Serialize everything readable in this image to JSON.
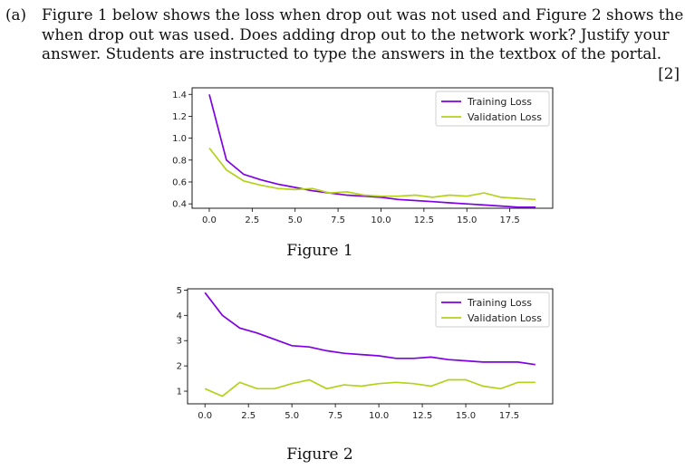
{
  "question": {
    "label": "(a)",
    "lines": [
      "Figure 1 below shows the loss when drop out was not used and Figure 2 shows the loss",
      "when drop out was used.  Does adding drop out to the network work?  Justify your",
      "answer. Students are instructed to type the answers in the textbox of the portal."
    ],
    "marks": "[2]"
  },
  "captions": [
    "Figure 1",
    "Figure 2"
  ],
  "colors": {
    "training": "#7f00e6",
    "validation": "#b5d11a"
  },
  "chart_data": [
    {
      "type": "line",
      "title": "",
      "xlabel": "",
      "ylabel": "",
      "xlim": [
        -1,
        20
      ],
      "ylim": [
        0.36,
        1.46
      ],
      "xticks": [
        0.0,
        2.5,
        5.0,
        7.5,
        10.0,
        12.5,
        15.0,
        17.5
      ],
      "xtick_labels": [
        "0.0",
        "2.5",
        "5.0",
        "7.5",
        "10.0",
        "12.5",
        "15.0",
        "17.5"
      ],
      "yticks": [
        0.4,
        0.6,
        0.8,
        1.0,
        1.2,
        1.4
      ],
      "ytick_labels": [
        "0.4",
        "0.6",
        "0.8",
        "1.0",
        "1.2",
        "1.4"
      ],
      "legend_position": "top-right",
      "x": [
        0,
        1,
        2,
        3,
        4,
        5,
        6,
        7,
        8,
        9,
        10,
        11,
        12,
        13,
        14,
        15,
        16,
        17,
        18,
        19
      ],
      "series": [
        {
          "name": "Training Loss",
          "color": "#7f00e6",
          "values": [
            1.4,
            0.8,
            0.67,
            0.62,
            0.58,
            0.55,
            0.52,
            0.5,
            0.48,
            0.47,
            0.46,
            0.44,
            0.43,
            0.42,
            0.41,
            0.4,
            0.39,
            0.38,
            0.37,
            0.37
          ]
        },
        {
          "name": "Validation Loss",
          "color": "#b5d11a",
          "values": [
            0.91,
            0.71,
            0.61,
            0.57,
            0.54,
            0.53,
            0.54,
            0.5,
            0.51,
            0.48,
            0.47,
            0.47,
            0.48,
            0.46,
            0.48,
            0.47,
            0.5,
            0.46,
            0.45,
            0.44
          ]
        }
      ]
    },
    {
      "type": "line",
      "title": "",
      "xlabel": "",
      "ylabel": "",
      "xlim": [
        -1,
        20
      ],
      "ylim": [
        0.5,
        5.05
      ],
      "xticks": [
        0.0,
        2.5,
        5.0,
        7.5,
        10.0,
        12.5,
        15.0,
        17.5
      ],
      "xtick_labels": [
        "0.0",
        "2.5",
        "5.0",
        "7.5",
        "10.0",
        "12.5",
        "15.0",
        "17.5"
      ],
      "yticks": [
        1,
        2,
        3,
        4,
        5
      ],
      "ytick_labels": [
        "1",
        "2",
        "3",
        "4",
        "5"
      ],
      "legend_position": "top-right",
      "x": [
        0,
        1,
        2,
        3,
        4,
        5,
        6,
        7,
        8,
        9,
        10,
        11,
        12,
        13,
        14,
        15,
        16,
        17,
        18,
        19
      ],
      "series": [
        {
          "name": "Training Loss",
          "color": "#7f00e6",
          "values": [
            4.9,
            4.0,
            3.5,
            3.3,
            3.05,
            2.8,
            2.75,
            2.6,
            2.5,
            2.45,
            2.4,
            2.3,
            2.3,
            2.35,
            2.25,
            2.2,
            2.15,
            2.15,
            2.15,
            2.05
          ]
        },
        {
          "name": "Validation Loss",
          "color": "#b5d11a",
          "values": [
            1.1,
            0.8,
            1.35,
            1.1,
            1.1,
            1.3,
            1.45,
            1.1,
            1.25,
            1.2,
            1.3,
            1.35,
            1.3,
            1.2,
            1.45,
            1.45,
            1.2,
            1.1,
            1.35,
            1.35
          ]
        }
      ]
    }
  ]
}
